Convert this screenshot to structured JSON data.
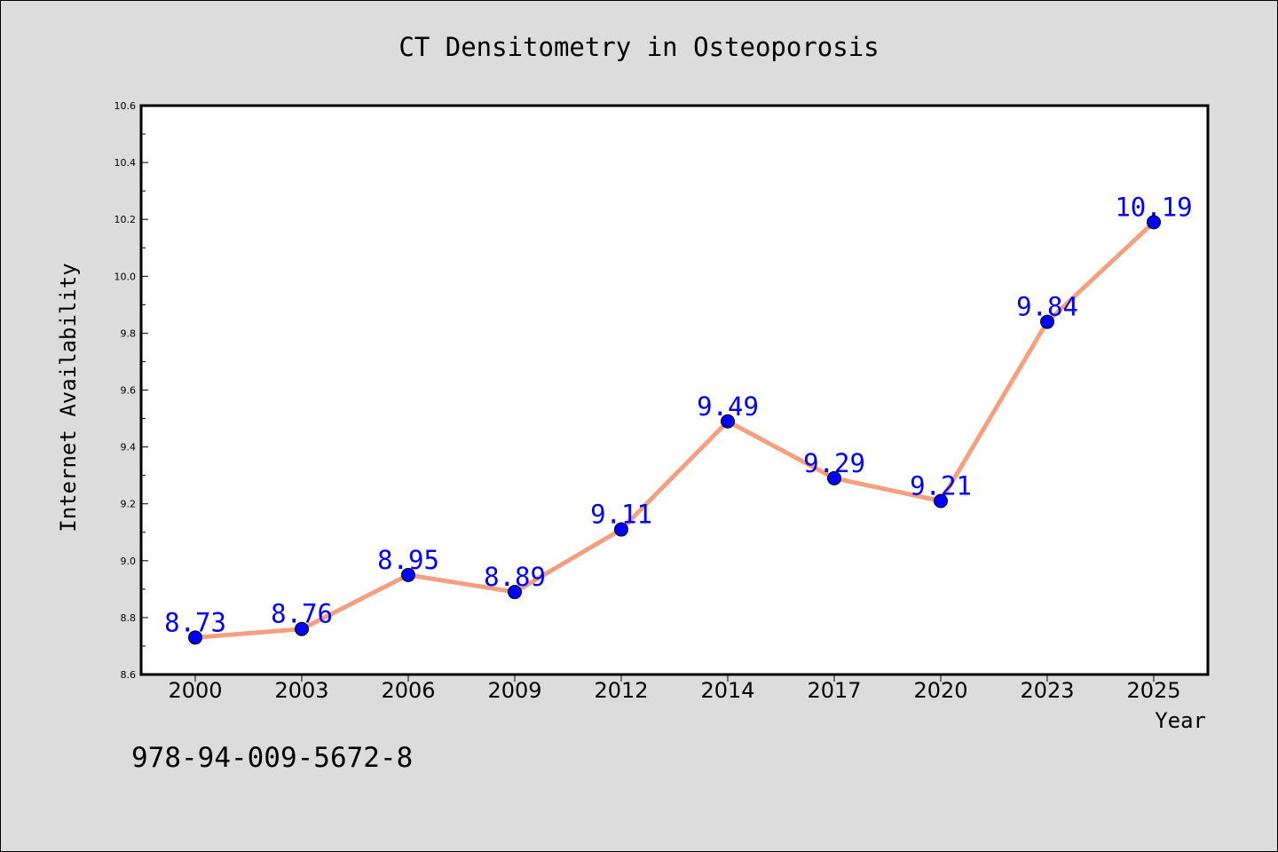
{
  "chart_data": {
    "type": "line",
    "title": "CT Densitometry in Osteoporosis",
    "xlabel": "Year",
    "ylabel": "Internet Availability",
    "categories": [
      "2000",
      "2003",
      "2006",
      "2009",
      "2012",
      "2014",
      "2017",
      "2020",
      "2023",
      "2025"
    ],
    "series": [
      {
        "values": [
          8.73,
          8.76,
          8.95,
          8.89,
          9.11,
          9.49,
          9.29,
          9.21,
          9.84,
          10.19
        ]
      }
    ],
    "data_labels": [
      "8.73",
      "8.76",
      "8.95",
      "8.89",
      "9.11",
      "9.49",
      "9.29",
      "9.21",
      "9.84",
      "10.19"
    ],
    "ylim": [
      8.6,
      10.6
    ],
    "yticks": [
      "8.6",
      "8.8",
      "9.0",
      "9.2",
      "9.4",
      "9.6",
      "9.8",
      "10.0",
      "10.2",
      "10.4",
      "10.6"
    ],
    "grid": false,
    "legend": "none",
    "line_color": "#f4a07f",
    "marker_color": "#0000ff",
    "label_color": "#0000ff"
  },
  "footer_text": "978-94-009-5672-8"
}
